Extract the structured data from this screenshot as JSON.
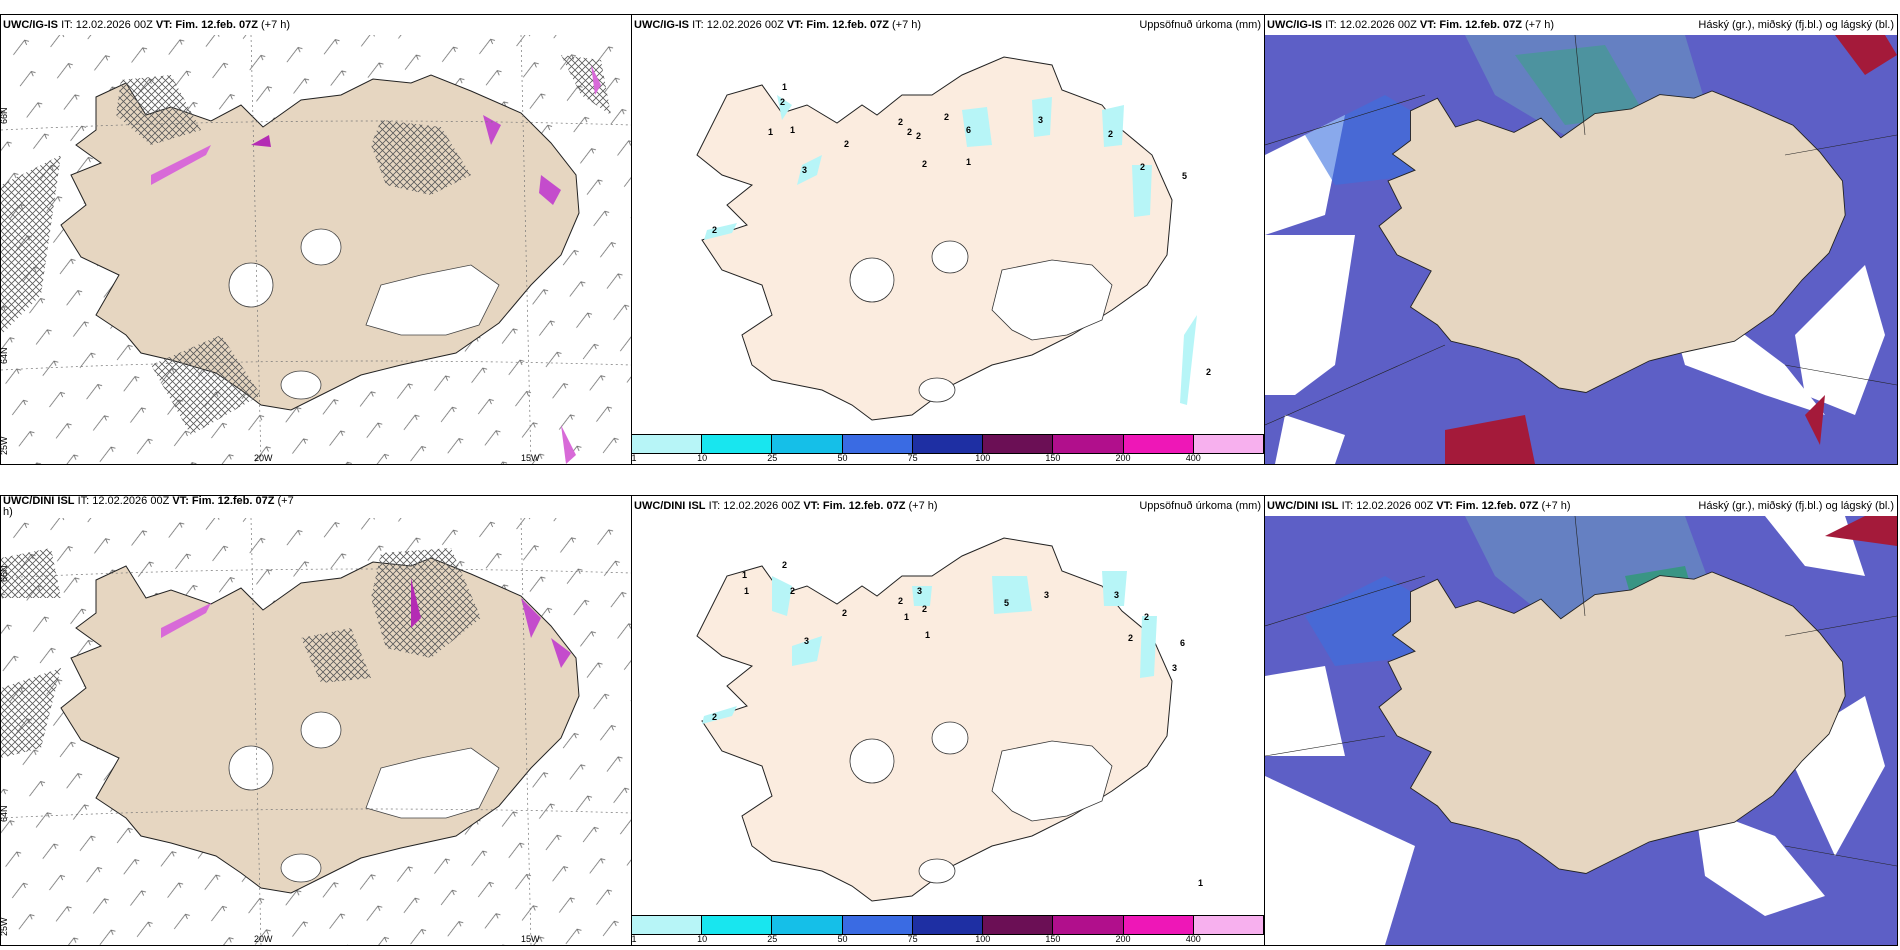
{
  "rows": [
    {
      "wind": {
        "model": "UWC/IG-IS",
        "header_text": "IT: 12.02.2026 00Z",
        "vt_text": "VT: Fim. 12.feb. 07Z",
        "offset_text": "(+7 h)"
      },
      "precip": {
        "model": "UWC/IG-IS",
        "header_text": "IT: 12.02.2026 00Z",
        "vt_text": "VT: Fim. 12.feb. 07Z",
        "offset_text": "(+7 h)",
        "title": "Uppsöfnuð úrkoma (mm)"
      },
      "cloud": {
        "model": "UWC/IG-IS",
        "header_text": "IT: 12.02.2026 00Z",
        "vt_text": "VT: Fim. 12.feb. 07Z",
        "offset_text": "(+7 h)",
        "title": "Háský (gr.), miðský (fj.bl.) og lágský (bl.)"
      }
    },
    {
      "wind": {
        "model": "UWC/DINI ISL",
        "header_text": "IT: 12.02.2026 00Z",
        "vt_text": "VT: Fim. 12.feb. 07Z",
        "offset_text": "(+7",
        "offset_tail": "h)"
      },
      "precip": {
        "model": "UWC/DINI ISL",
        "header_text": "IT: 12.02.2026 00Z",
        "vt_text": "VT: Fim. 12.feb. 07Z",
        "offset_text": "(+7 h)",
        "title": "Uppsöfnuð úrkoma (mm)"
      },
      "cloud": {
        "model": "UWC/DINI ISL",
        "header_text": "IT: 12.02.2026 00Z",
        "vt_text": "VT: Fim. 12.feb. 07Z",
        "offset_text": "(+7 h)",
        "title": "Háský (gr.), miðský (fj.bl.) og lágský (bl.)"
      }
    }
  ],
  "axis_labels": {
    "lat66": "66N",
    "lat64": "64N",
    "lon25": "25W",
    "lon20": "20W",
    "lon15": "15W"
  },
  "colorbar": {
    "labels": [
      "1",
      "10",
      "25",
      "50",
      "75",
      "100",
      "150",
      "200",
      "400"
    ],
    "colors": [
      "#b7f5f7",
      "#18e6ef",
      "#15bfe8",
      "#3a6be3",
      "#1e2fa3",
      "#6b0f55",
      "#b10f8c",
      "#ee17b7",
      "#f7b0ee"
    ]
  },
  "precip_values_top": [
    "1",
    "2",
    "1",
    "1",
    "3",
    "2",
    "2",
    "2",
    "2",
    "2",
    "2",
    "6",
    "1",
    "2",
    "3",
    "2",
    "2",
    "5",
    "2"
  ],
  "precip_values_bottom": [
    "1",
    "2",
    "1",
    "2",
    "3",
    "2",
    "2",
    "2",
    "1",
    "2",
    "3",
    "1",
    "5",
    "3",
    "3",
    "2",
    "6",
    "2",
    "3",
    "1"
  ],
  "colors": {
    "land": "#e6d6c1",
    "land_light": "#fbecdf",
    "sea_blue": "#5d5fc6",
    "glacier": "#ffffff",
    "hatched": "#555555",
    "precip_light": "#b7f5f7"
  }
}
